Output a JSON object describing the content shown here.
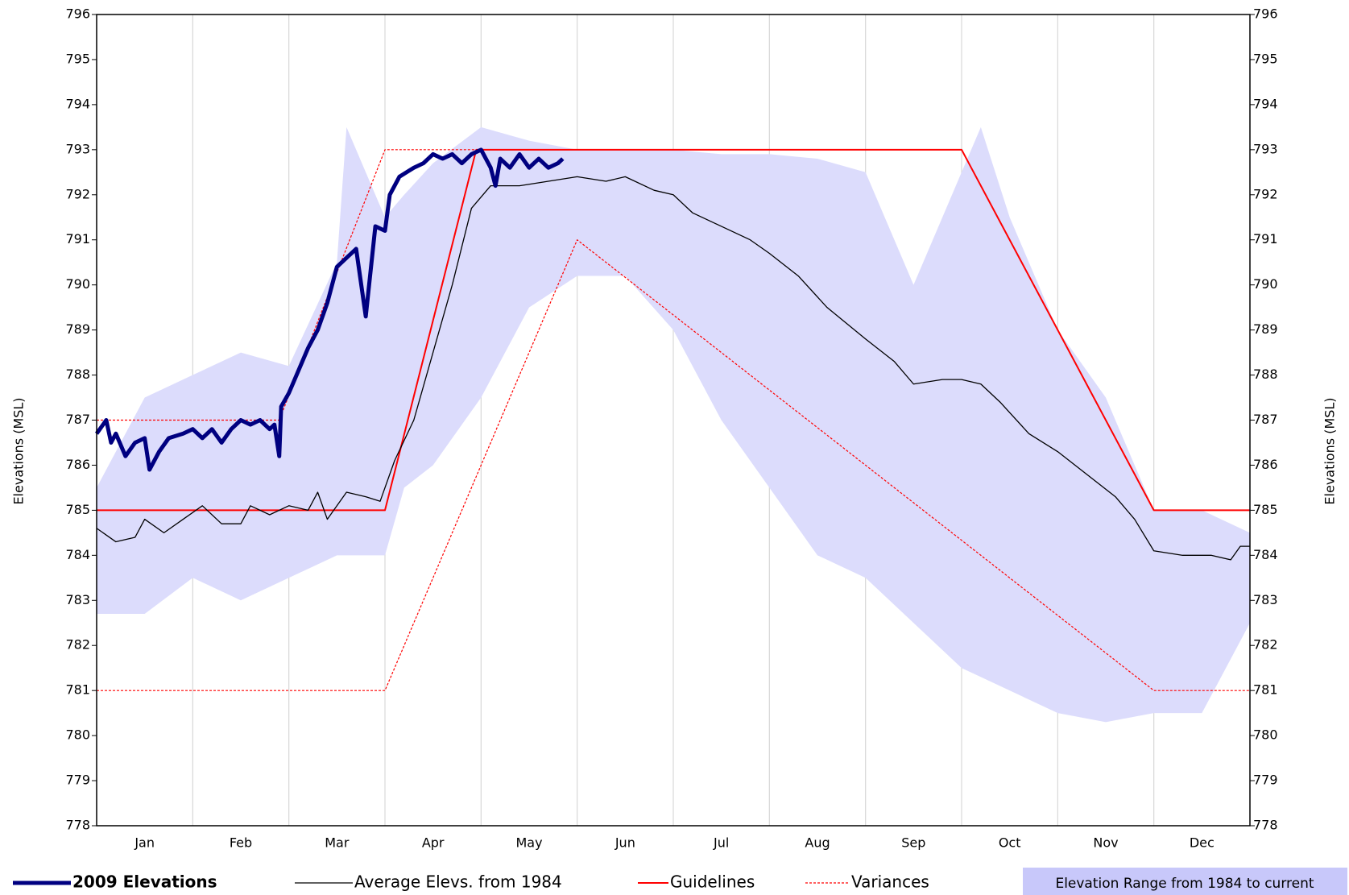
{
  "chart_data": {
    "type": "line",
    "categories": [
      "Jan",
      "Feb",
      "Mar",
      "Apr",
      "May",
      "Jun",
      "Jul",
      "Aug",
      "Sep",
      "Oct",
      "Nov",
      "Dec"
    ],
    "xlim": [
      0,
      12
    ],
    "ylim": [
      778,
      796
    ],
    "yticks": [
      778,
      779,
      780,
      781,
      782,
      783,
      784,
      785,
      786,
      787,
      788,
      789,
      790,
      791,
      792,
      793,
      794,
      795,
      796
    ],
    "y2lim": [
      778,
      796
    ],
    "y2ticks": [
      778,
      779,
      780,
      781,
      782,
      783,
      784,
      785,
      786,
      787,
      788,
      789,
      790,
      791,
      792,
      793,
      794,
      795,
      796
    ],
    "ylabel": "Elevations (MSL)",
    "y2label": "Elevations (MSL)",
    "grid": true,
    "band": {
      "name": "Elevation Range from 1984 to current",
      "color": "#dcdcfc",
      "x": [
        0,
        0.5,
        1,
        1.5,
        2,
        2.5,
        2.6,
        3,
        3.2,
        3.5,
        4,
        4.5,
        5,
        5.5,
        6,
        6.5,
        7,
        7.5,
        8,
        8.5,
        9,
        9.2,
        9.5,
        10,
        10.5,
        11,
        11.5,
        12
      ],
      "upper": [
        785.5,
        787.5,
        788,
        788.5,
        788.2,
        790.5,
        793.5,
        791.5,
        792,
        792.7,
        793.5,
        793.2,
        793,
        793,
        793,
        792.9,
        792.9,
        792.8,
        792.5,
        790,
        792.5,
        793.5,
        791.5,
        789,
        787.5,
        785,
        785,
        784.5
      ],
      "lower": [
        782.7,
        782.7,
        783.5,
        783,
        783.5,
        784,
        784,
        784,
        785.5,
        786,
        787.5,
        789.5,
        790.2,
        790.2,
        789,
        787,
        785.5,
        784,
        783.5,
        782.5,
        781.5,
        781.3,
        781,
        780.5,
        780.3,
        780.5,
        780.5,
        782.5
      ]
    },
    "series": [
      {
        "name": "2009 Elevations",
        "color": "#000080",
        "width": 5,
        "x": [
          0,
          0.1,
          0.15,
          0.2,
          0.3,
          0.4,
          0.5,
          0.55,
          0.65,
          0.75,
          0.9,
          1,
          1.1,
          1.2,
          1.3,
          1.4,
          1.5,
          1.6,
          1.7,
          1.8,
          1.85,
          1.9,
          1.92,
          2,
          2.1,
          2.2,
          2.3,
          2.4,
          2.5,
          2.6,
          2.7,
          2.8,
          2.9,
          3,
          3.05,
          3.15,
          3.3,
          3.4,
          3.5,
          3.6,
          3.7,
          3.8,
          3.9,
          4,
          4.1,
          4.15,
          4.2,
          4.3,
          4.4,
          4.5,
          4.6,
          4.7,
          4.8,
          4.85
        ],
        "values": [
          786.7,
          787,
          786.5,
          786.7,
          786.2,
          786.5,
          786.6,
          785.9,
          786.3,
          786.6,
          786.7,
          786.8,
          786.6,
          786.8,
          786.5,
          786.8,
          787,
          786.9,
          787,
          786.8,
          786.9,
          786.2,
          787.3,
          787.6,
          788.1,
          788.6,
          789,
          789.6,
          790.4,
          790.6,
          790.8,
          789.3,
          791.3,
          791.2,
          792,
          792.4,
          792.6,
          792.7,
          792.9,
          792.8,
          792.9,
          792.7,
          792.9,
          793,
          792.6,
          792.2,
          792.8,
          792.6,
          792.9,
          792.6,
          792.8,
          792.6,
          792.7,
          792.8
        ]
      },
      {
        "name": "Average Elevs. from 1984",
        "color": "#000000",
        "width": 1.3,
        "x": [
          0,
          0.2,
          0.4,
          0.5,
          0.7,
          0.9,
          1.1,
          1.3,
          1.5,
          1.6,
          1.8,
          2,
          2.2,
          2.3,
          2.4,
          2.6,
          2.8,
          2.95,
          3.1,
          3.3,
          3.5,
          3.7,
          3.9,
          4.1,
          4.4,
          4.7,
          5,
          5.3,
          5.5,
          5.8,
          6,
          6.2,
          6.5,
          6.8,
          7,
          7.3,
          7.6,
          8,
          8.3,
          8.5,
          8.8,
          9,
          9.2,
          9.4,
          9.7,
          10,
          10.3,
          10.6,
          10.8,
          11,
          11.3,
          11.6,
          11.8,
          11.9,
          12
        ],
        "values": [
          784.6,
          784.3,
          784.4,
          784.8,
          784.5,
          784.8,
          785.1,
          784.7,
          784.7,
          785.1,
          784.9,
          785.1,
          785,
          785.4,
          784.8,
          785.4,
          785.3,
          785.2,
          786.1,
          787,
          788.5,
          790,
          791.7,
          792.2,
          792.2,
          792.3,
          792.4,
          792.3,
          792.4,
          792.1,
          792,
          791.6,
          791.3,
          791,
          790.7,
          790.2,
          789.5,
          788.8,
          788.3,
          787.8,
          787.9,
          787.9,
          787.8,
          787.4,
          786.7,
          786.3,
          785.8,
          785.3,
          784.8,
          784.1,
          784,
          784,
          783.9,
          784.2,
          784.2
        ]
      },
      {
        "name": "Guidelines",
        "color": "#ff0000",
        "width": 2,
        "x": [
          0,
          3,
          3.95,
          9,
          11,
          12
        ],
        "values": [
          785,
          785,
          793,
          793,
          785,
          785
        ]
      },
      {
        "name": "Variances",
        "color": "#ff0000",
        "width": 1.2,
        "dashed": true,
        "x": [
          0,
          1.9,
          3,
          4,
          null,
          0,
          3,
          5,
          11,
          12
        ],
        "values": [
          787,
          787,
          793,
          793,
          null,
          781,
          781,
          791,
          781,
          781
        ]
      }
    ]
  }
}
